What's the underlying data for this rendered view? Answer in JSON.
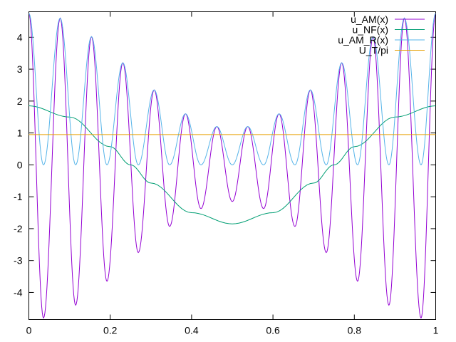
{
  "chart_data": {
    "type": "line",
    "title": "",
    "xlabel": "",
    "ylabel": "",
    "xlim": [
      0,
      1
    ],
    "ylim": [
      -4.85,
      4.8
    ],
    "xticks": [
      0,
      0.2,
      0.4,
      0.6,
      0.8,
      1
    ],
    "xtick_labels": [
      "0",
      "0.2",
      "0.4",
      "0.6",
      "0.8",
      "1"
    ],
    "yticks": [
      4,
      3,
      2,
      1,
      0,
      -1,
      -2,
      -3,
      -4
    ],
    "ytick_labels": [
      "4",
      "3",
      "2",
      "1",
      "0",
      "-1",
      "-2",
      "-3",
      "-4"
    ],
    "grid": false,
    "legend_position": "top-right",
    "series": [
      {
        "name": "u_AM(x)",
        "color": "#9400d3",
        "envelope_x": [
          0,
          0.036,
          0.077,
          0.115,
          0.154,
          0.192,
          0.231,
          0.269,
          0.308,
          0.346,
          0.385,
          0.423,
          0.462,
          0.5,
          0.538,
          0.577,
          0.615,
          0.654,
          0.692,
          0.731,
          0.769,
          0.808,
          0.846,
          0.885,
          0.923,
          0.964,
          1
        ],
        "envelope_y": [
          4.75,
          -4.8,
          4.6,
          -4.4,
          4.02,
          -3.65,
          3.2,
          -2.75,
          2.35,
          -1.93,
          1.6,
          -1.37,
          1.2,
          -1.15,
          1.2,
          -1.37,
          1.6,
          -1.93,
          2.35,
          -2.75,
          3.2,
          -3.65,
          4.02,
          -4.4,
          4.6,
          -4.8,
          4.75
        ]
      },
      {
        "name": "u_NF(x)",
        "color": "#009e73",
        "x": [
          0,
          0.1,
          0.2,
          0.25,
          0.3,
          0.4,
          0.5,
          0.6,
          0.7,
          0.75,
          0.8,
          0.9,
          1
        ],
        "y": [
          1.85,
          1.5,
          0.57,
          0,
          -0.57,
          -1.5,
          -1.85,
          -1.5,
          -0.57,
          0,
          0.57,
          1.5,
          1.85
        ]
      },
      {
        "name": "u_AM_R(x)",
        "color": "#56b4e9",
        "description_note": "",
        "envelope_x": [
          0,
          0.036,
          0.077,
          0.115,
          0.154,
          0.192,
          0.231,
          0.269,
          0.308,
          0.346,
          0.385,
          0.423,
          0.462,
          0.5,
          0.538,
          0.577,
          0.615,
          0.654,
          0.692,
          0.731,
          0.769,
          0.808,
          0.846,
          0.885,
          0.923,
          0.964,
          1
        ],
        "envelope_y": [
          4.75,
          0,
          4.6,
          0,
          4.02,
          0,
          3.2,
          0,
          2.35,
          0,
          1.6,
          0,
          1.2,
          0,
          1.2,
          0,
          1.6,
          0,
          2.35,
          0,
          3.2,
          0,
          4.02,
          0,
          4.6,
          0,
          4.75
        ]
      },
      {
        "name": "U_T/pi",
        "color": "#e69f00",
        "x": [
          0,
          1
        ],
        "y": [
          0.95,
          0.95
        ]
      }
    ]
  }
}
